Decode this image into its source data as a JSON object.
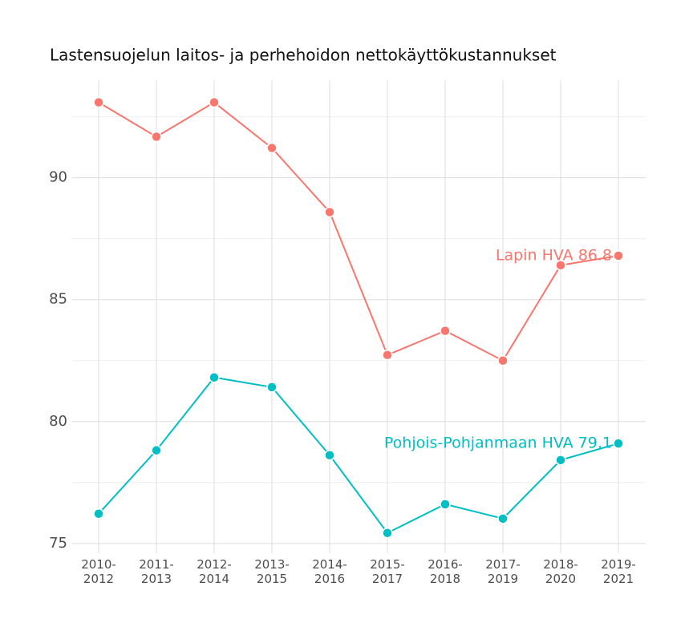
{
  "chart_data": {
    "type": "line",
    "title": "Lastensuojelun laitos- ja perhehoidon nettokäyttökustannukset",
    "categories": [
      "2010-\n2012",
      "2011-\n2013",
      "2012-\n2014",
      "2013-\n2015",
      "2014-\n2016",
      "2015-\n2017",
      "2016-\n2018",
      "2017-\n2019",
      "2018-\n2020",
      "2019-\n2021"
    ],
    "series": [
      {
        "label": "Lapin HVA 86.8",
        "color": "#f8766d",
        "values": [
          93.09,
          91.68,
          93.09,
          91.22,
          88.59,
          82.73,
          83.72,
          82.5,
          86.41,
          86.8
        ]
      },
      {
        "label": "Pohjois-Pohjanmaan HVA 79.1",
        "color": "#00bfc4",
        "values": [
          76.22,
          78.82,
          81.81,
          81.41,
          78.62,
          75.43,
          76.61,
          76.02,
          78.42,
          79.1
        ]
      }
    ],
    "ylim": [
      74.6,
      94
    ],
    "yticks": [
      75,
      80,
      85,
      90
    ],
    "minor_yticks": [
      77.5,
      82.5,
      87.5,
      92.5
    ],
    "grid": true
  }
}
